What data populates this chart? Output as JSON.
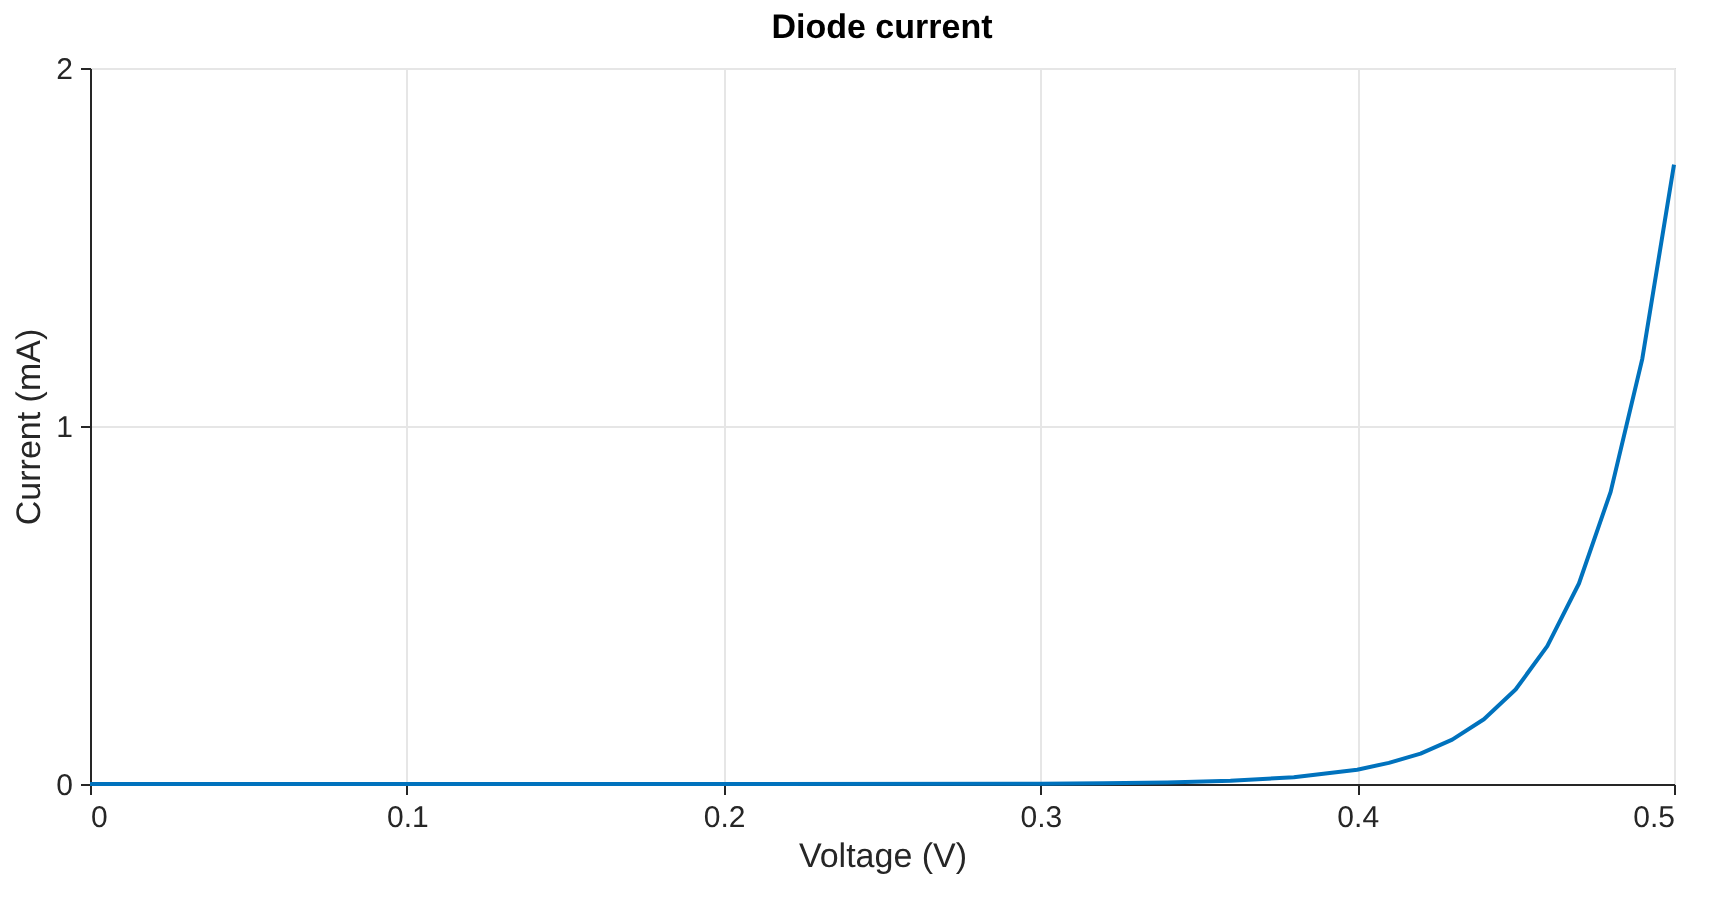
{
  "chart_data": {
    "type": "line",
    "title": "Diode current",
    "xlabel": "Voltage (V)",
    "ylabel": "Current (mA)",
    "x": [
      0,
      0.1,
      0.2,
      0.3,
      0.32,
      0.34,
      0.36,
      0.38,
      0.4,
      0.41,
      0.42,
      0.43,
      0.44,
      0.45,
      0.46,
      0.47,
      0.48,
      0.49,
      0.5
    ],
    "series": [
      {
        "color": "#0072bd",
        "values": [
          0,
          0,
          0,
          0.001,
          0.002,
          0.004,
          0.009,
          0.019,
          0.04,
          0.059,
          0.085,
          0.124,
          0.181,
          0.264,
          0.385,
          0.56,
          0.816,
          1.188,
          1.73
        ]
      }
    ],
    "xlim": [
      0,
      0.5
    ],
    "ylim": [
      0,
      2
    ],
    "xticks": [
      0,
      0.1,
      0.2,
      0.3,
      0.4,
      0.5
    ],
    "yticks": [
      0,
      1,
      2
    ],
    "grid": true,
    "marker": "none",
    "line_style": "solid"
  }
}
